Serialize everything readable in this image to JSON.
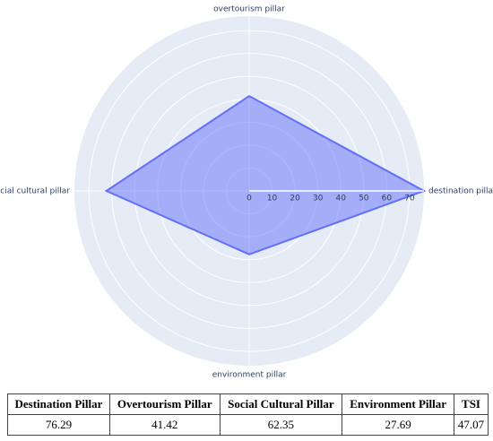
{
  "chart_data": {
    "type": "radar",
    "categories": [
      "destination pillar",
      "overtourism pillar",
      "social cultural pillar",
      "environment pillar"
    ],
    "values": [
      76.29,
      41.42,
      62.35,
      27.69
    ],
    "color": "#636efa",
    "rlim": [
      0,
      76.29
    ],
    "rticks": [
      0,
      10,
      20,
      30,
      40,
      50,
      60,
      70
    ],
    "grid": true
  },
  "table": {
    "header": [
      "Destination Pillar",
      "Overtourism Pillar",
      "Social Cultural Pillar",
      "Environment Pillar",
      "TSI"
    ],
    "rows": [
      [
        76.29,
        41.42,
        62.35,
        27.69,
        47.07
      ]
    ]
  }
}
